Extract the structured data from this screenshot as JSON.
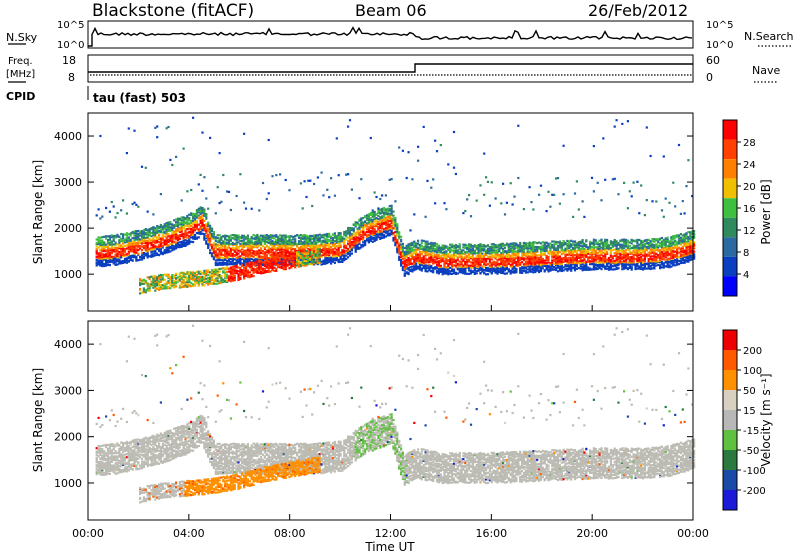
{
  "header": {
    "title": "Blackstone (fitACF)",
    "beam": "Beam 06",
    "date": "26/Feb/2012"
  },
  "noise_panel": {
    "left_label": "N.Sky",
    "right_label": "N.Search",
    "left_ticks": [
      "10^5",
      "10^0"
    ],
    "right_ticks": [
      "10^5",
      "10^0"
    ]
  },
  "freq_panel": {
    "left_label_1": "Freq.",
    "left_label_2": "[MHz]",
    "right_label": "Nave",
    "left_ticks": [
      "18",
      "8"
    ],
    "right_ticks": [
      "60",
      "0"
    ],
    "cpid_label": "CPID",
    "cpid_text": "tau (fast) 503"
  },
  "colors": {
    "power_scale": [
      "#0000ff",
      "#0a3fc0",
      "#2a6aa0",
      "#2f8a5e",
      "#3fbf3f",
      "#f0c000",
      "#ff8000",
      "#ff4000",
      "#ff0000"
    ],
    "velocity_scale": [
      "#1a1ad8",
      "#1a4aa8",
      "#2a7a40",
      "#60c040",
      "#b8b8b8",
      "#d8d0c0",
      "#ff9000",
      "#ff5a00",
      "#ee0000"
    ],
    "ground_scatter": "#bcbcb4"
  },
  "chart_data": [
    {
      "type": "heatmap",
      "panel": "power",
      "ylabel": "Slant Range [km]",
      "yticks": [
        "1000",
        "2000",
        "3000",
        "4000"
      ],
      "ylim": [
        200,
        4500
      ],
      "xlim": [
        0,
        24
      ],
      "colorbar_label": "Power [dB]",
      "colorbar_ticks": [
        "28",
        "24",
        "20",
        "16",
        "12",
        "8",
        "4"
      ],
      "colorbar_range": [
        0,
        32
      ],
      "bands": [
        {
          "name": "main",
          "x": [
            0,
            1,
            2,
            3,
            4,
            4.5,
            5,
            7,
            9,
            10,
            11,
            12,
            12.5,
            13,
            14,
            16,
            18,
            20,
            22,
            23,
            24
          ],
          "center": [
            1400,
            1450,
            1550,
            1700,
            1900,
            2100,
            1450,
            1450,
            1450,
            1500,
            1900,
            2100,
            1200,
            1350,
            1250,
            1250,
            1300,
            1350,
            1350,
            1400,
            1550
          ]
        },
        {
          "name": "lower",
          "x": [
            2,
            3,
            4,
            5,
            6,
            7,
            8,
            9
          ],
          "center": [
            700,
            800,
            850,
            900,
            1000,
            1150,
            1250,
            1350
          ]
        }
      ]
    },
    {
      "type": "heatmap",
      "panel": "velocity",
      "ylabel": "Slant Range [km]",
      "yticks": [
        "1000",
        "2000",
        "3000",
        "4000"
      ],
      "ylim": [
        200,
        4500
      ],
      "xlim": [
        0,
        24
      ],
      "xlabel": "Time UT",
      "xticks": [
        "00:00",
        "04:00",
        "08:00",
        "12:00",
        "16:00",
        "20:00",
        "00:00"
      ],
      "colorbar_label": "Velocity [m s⁻¹]",
      "colorbar_ticks": [
        "200",
        "100",
        "50",
        "15",
        "-15",
        "-50",
        "-100",
        "-200"
      ],
      "colorbar_range": [
        -250,
        250
      ]
    }
  ]
}
